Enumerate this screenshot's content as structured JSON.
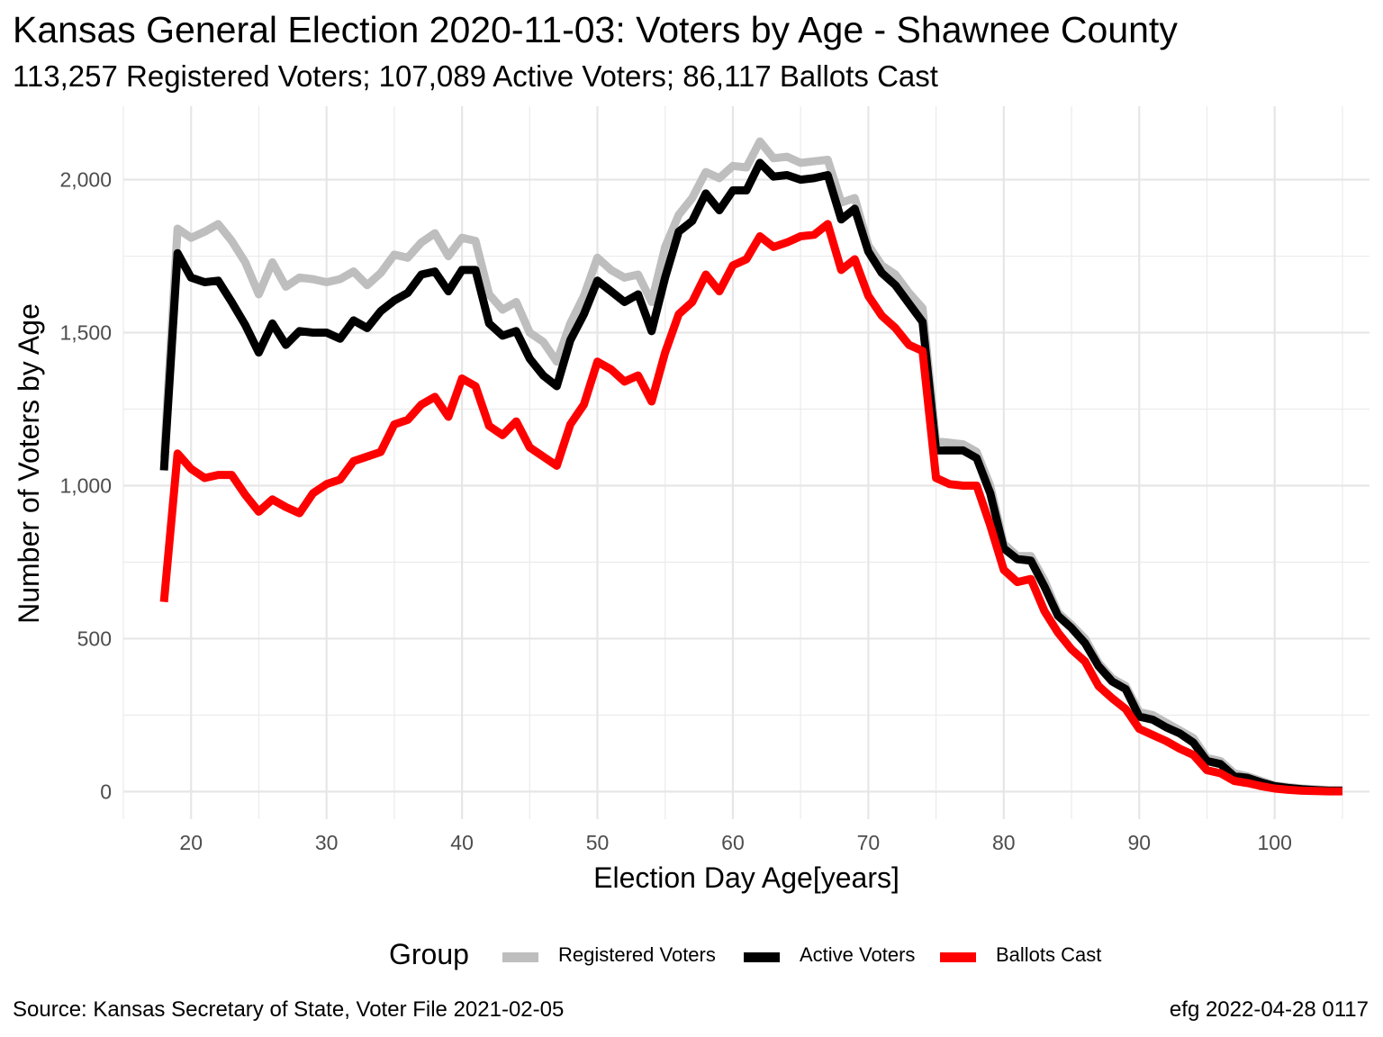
{
  "title": "Kansas General Election 2020-11-03:  Voters by Age - Shawnee County",
  "subtitle": "113,257 Registered Voters; 107,089 Active Voters; 86,117 Ballots Cast",
  "source": "Source:  Kansas Secretary of State, Voter File  2021-02-05",
  "credit": "efg 2022-04-28 0117",
  "legend": {
    "title": "Group"
  },
  "chart_data": {
    "type": "line",
    "xlabel": "Election Day Age[years]",
    "ylabel": "Number of Voters by Age",
    "xlim": [
      15,
      107
    ],
    "ylim": [
      -90,
      2240
    ],
    "x_ticks": [
      20,
      30,
      40,
      50,
      60,
      70,
      80,
      90,
      100
    ],
    "x_tick_labels": [
      "20",
      "30",
      "40",
      "50",
      "60",
      "70",
      "80",
      "90",
      "100"
    ],
    "y_ticks": [
      0,
      500,
      1000,
      1500,
      2000
    ],
    "y_tick_labels": [
      "0",
      "500",
      "1,000",
      "1,500",
      "2,000"
    ],
    "grid": true,
    "legend_position": "bottom",
    "x": [
      18,
      19,
      20,
      21,
      22,
      23,
      24,
      25,
      26,
      27,
      28,
      29,
      30,
      31,
      32,
      33,
      34,
      35,
      36,
      37,
      38,
      39,
      40,
      41,
      42,
      43,
      44,
      45,
      46,
      47,
      48,
      49,
      50,
      51,
      52,
      53,
      54,
      55,
      56,
      57,
      58,
      59,
      60,
      61,
      62,
      63,
      64,
      65,
      66,
      67,
      68,
      69,
      70,
      71,
      72,
      73,
      74,
      75,
      76,
      77,
      78,
      79,
      80,
      81,
      82,
      83,
      84,
      85,
      86,
      87,
      88,
      89,
      90,
      91,
      92,
      93,
      94,
      95,
      96,
      97,
      98,
      99,
      100,
      101,
      102,
      103,
      104,
      105
    ],
    "series": [
      {
        "name": "Registered Voters",
        "color": "#BEBEBE",
        "values": [
          1090,
          1840,
          1810,
          1830,
          1855,
          1800,
          1730,
          1625,
          1730,
          1650,
          1680,
          1675,
          1665,
          1675,
          1700,
          1655,
          1695,
          1755,
          1745,
          1795,
          1825,
          1750,
          1810,
          1800,
          1625,
          1575,
          1600,
          1500,
          1470,
          1405,
          1530,
          1620,
          1745,
          1705,
          1680,
          1690,
          1600,
          1780,
          1885,
          1940,
          2025,
          2005,
          2045,
          2040,
          2125,
          2070,
          2075,
          2055,
          2060,
          2065,
          1925,
          1940,
          1785,
          1720,
          1690,
          1630,
          1580,
          1145,
          1140,
          1135,
          1110,
          1000,
          810,
          770,
          770,
          690,
          585,
          545,
          500,
          420,
          370,
          345,
          260,
          250,
          225,
          200,
          175,
          110,
          100,
          60,
          50,
          35,
          20,
          15,
          10,
          8,
          5,
          5
        ]
      },
      {
        "name": "Active Voters",
        "color": "#000000",
        "values": [
          1050,
          1760,
          1680,
          1665,
          1670,
          1600,
          1525,
          1435,
          1530,
          1460,
          1505,
          1500,
          1500,
          1480,
          1540,
          1515,
          1570,
          1605,
          1630,
          1690,
          1700,
          1635,
          1705,
          1705,
          1530,
          1490,
          1505,
          1415,
          1360,
          1325,
          1475,
          1560,
          1670,
          1635,
          1600,
          1625,
          1505,
          1680,
          1830,
          1865,
          1955,
          1900,
          1965,
          1965,
          2055,
          2010,
          2015,
          2000,
          2005,
          2015,
          1870,
          1905,
          1765,
          1695,
          1655,
          1595,
          1535,
          1115,
          1115,
          1115,
          1090,
          975,
          795,
          760,
          755,
          670,
          575,
          535,
          485,
          410,
          360,
          335,
          245,
          235,
          210,
          190,
          160,
          100,
          90,
          50,
          45,
          30,
          18,
          12,
          8,
          5,
          3,
          3
        ]
      },
      {
        "name": "Ballots Cast",
        "color": "#FF0000",
        "values": [
          620,
          1105,
          1055,
          1025,
          1035,
          1035,
          970,
          915,
          955,
          930,
          910,
          975,
          1005,
          1020,
          1080,
          1095,
          1110,
          1200,
          1215,
          1265,
          1290,
          1225,
          1350,
          1325,
          1195,
          1165,
          1210,
          1125,
          1095,
          1065,
          1200,
          1265,
          1405,
          1380,
          1340,
          1360,
          1275,
          1435,
          1560,
          1600,
          1690,
          1635,
          1720,
          1740,
          1815,
          1780,
          1795,
          1815,
          1820,
          1855,
          1705,
          1740,
          1620,
          1555,
          1515,
          1460,
          1440,
          1025,
          1005,
          1000,
          1000,
          870,
          725,
          685,
          695,
          590,
          520,
          465,
          425,
          345,
          305,
          270,
          205,
          185,
          165,
          140,
          120,
          70,
          60,
          35,
          28,
          18,
          10,
          6,
          3,
          2,
          1,
          1
        ]
      }
    ]
  }
}
